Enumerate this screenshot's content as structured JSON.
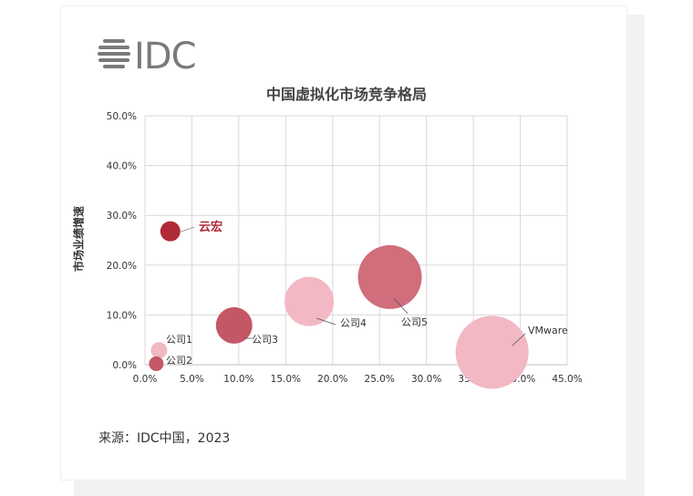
{
  "logo": {
    "text": "IDC",
    "color": "#7a7a7a"
  },
  "source": "来源：IDC中国，2023",
  "chart_data": {
    "type": "scatter",
    "title": "中国虚拟化市场竞争格局",
    "xlabel": "",
    "ylabel": "市场业绩增速",
    "xlim": [
      0,
      45
    ],
    "ylim": [
      0,
      50
    ],
    "grid": true,
    "x_ticks": [
      "0.0%",
      "5.0%",
      "10.0%",
      "15.0%",
      "20.0%",
      "25.0%",
      "30.0%",
      "35.0%",
      "40.0%",
      "45.0%"
    ],
    "y_ticks": [
      "0.0%",
      "10.0%",
      "20.0%",
      "30.0%",
      "40.0%",
      "50.0%"
    ],
    "points": [
      {
        "name": "云宏",
        "x": 2.7,
        "y": 26.8,
        "r": 11,
        "color": "#b02a37",
        "label_color": "#b02a37",
        "label_bold": true
      },
      {
        "name": "公司1",
        "x": 1.5,
        "y": 2.9,
        "r": 9,
        "color": "#f2b8c4",
        "label_color": "#333333"
      },
      {
        "name": "公司2",
        "x": 1.2,
        "y": 0.2,
        "r": 8,
        "color": "#c45766",
        "label_color": "#333333"
      },
      {
        "name": "公司3",
        "x": 9.5,
        "y": 7.9,
        "r": 20,
        "color": "#c45766",
        "label_color": "#333333"
      },
      {
        "name": "公司4",
        "x": 17.5,
        "y": 12.7,
        "r": 27,
        "color": "#f2b8c4",
        "label_color": "#333333"
      },
      {
        "name": "公司5",
        "x": 26.1,
        "y": 17.6,
        "r": 35,
        "color": "#d06e7c",
        "label_color": "#333333"
      },
      {
        "name": "VMware",
        "x": 37.0,
        "y": 2.5,
        "r": 40,
        "color": "#f2b8c4",
        "label_color": "#333333"
      }
    ]
  }
}
